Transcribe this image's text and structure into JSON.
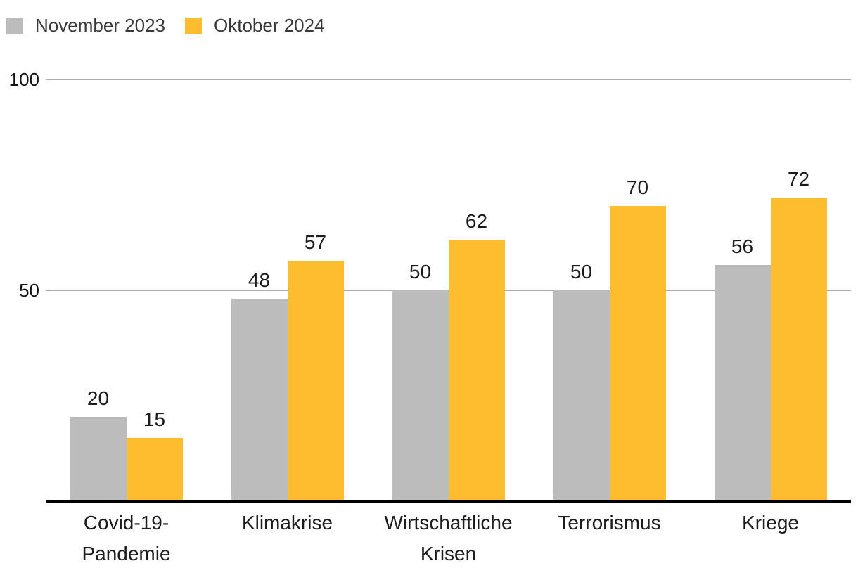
{
  "chart_data": {
    "type": "bar",
    "title": "",
    "categories": [
      "Covid-19-\nPandemie",
      "Klimakrise",
      "Wirtschaftliche\nKrisen",
      "Terrorismus",
      "Kriege"
    ],
    "series": [
      {
        "name": "November 2023",
        "color": "#bcbcbc",
        "values": [
          20,
          48,
          50,
          50,
          56
        ]
      },
      {
        "name": "Oktober 2024",
        "color": "#fdbd2f",
        "values": [
          15,
          57,
          62,
          70,
          72
        ]
      }
    ],
    "yticks": [
      100,
      50
    ],
    "ylim": [
      0,
      100
    ],
    "grid": "horizontal",
    "legend_position": "top-left",
    "value_labels": true
  },
  "colors": {
    "axis": "#000000",
    "gridline": "#aaaaaa",
    "bar_gray": "#bcbcbc",
    "bar_orange": "#fdbd2f",
    "text": "#1c1c1c",
    "legend_text": "#3a3a3a"
  }
}
